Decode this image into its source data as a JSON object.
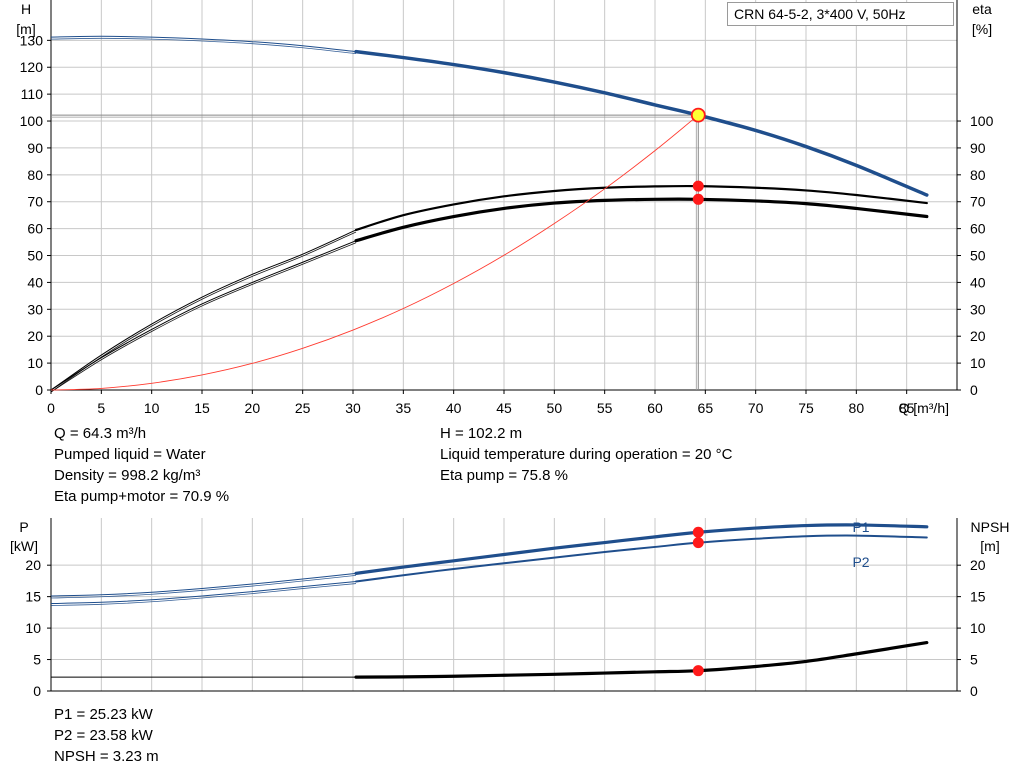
{
  "legend_title": "CRN 64-5-2, 3*400 V, 50Hz",
  "info": {
    "left": [
      "Q = 64.3 m³/h",
      "Pumped liquid = Water",
      "Density = 998.2 kg/m³",
      "Eta pump+motor = 70.9 %"
    ],
    "right": [
      "H = 102.2 m",
      "Liquid temperature during operation = 20 °C",
      "Eta pump = 75.8 %"
    ],
    "bottom": [
      "P1 = 25.23 kW",
      "P2 = 23.58 kW",
      "NPSH = 3.23 m"
    ]
  },
  "colors": {
    "head": "#1f4e8c",
    "eta": "#000000",
    "system": "#ff3b30",
    "power": "#1f4e8c",
    "npsh": "#000000",
    "grid": "#c8c8c8",
    "marker": "#ff1a1a",
    "duty_fill": "#ffff33"
  },
  "chart_data": [
    {
      "type": "line",
      "title": "",
      "xlabel": "Q [m³/h]",
      "ylabel_left": [
        "H",
        "[m]"
      ],
      "ylabel_right": [
        "eta",
        "[%]"
      ],
      "x_ticks": [
        0,
        5,
        10,
        15,
        20,
        25,
        30,
        35,
        40,
        45,
        50,
        55,
        60,
        65,
        70,
        75,
        80,
        85
      ],
      "xlim": [
        0,
        90
      ],
      "y_left_ticks": [
        0,
        10,
        20,
        30,
        40,
        50,
        60,
        70,
        80,
        90,
        100,
        110,
        120,
        130
      ],
      "y_right_ticks": [
        0,
        10,
        20,
        30,
        40,
        50,
        60,
        70,
        80,
        90,
        100
      ],
      "ylim": [
        0,
        145
      ],
      "grid": true,
      "series": [
        {
          "id": "head",
          "thin_to": 30.3,
          "x": [
            0,
            5,
            10,
            15,
            20,
            25,
            30.3,
            35,
            40,
            45,
            50,
            55,
            60,
            64.3,
            70,
            75,
            80,
            87
          ],
          "y": [
            131.2,
            131.5,
            131.2,
            130.5,
            129.5,
            128.0,
            125.8,
            123.6,
            121.0,
            118.0,
            114.5,
            110.5,
            106.0,
            102.2,
            96.5,
            90.5,
            83.5,
            72.5
          ]
        },
        {
          "id": "eta-pump",
          "thin_to": 30.3,
          "x": [
            0,
            5,
            10,
            15,
            20,
            25,
            30.3,
            35,
            40,
            45,
            50,
            55,
            60,
            64.3,
            70,
            75,
            80,
            87
          ],
          "y": [
            0,
            13,
            24.5,
            34.5,
            43,
            50.5,
            59.5,
            65,
            69,
            72,
            74,
            75.2,
            75.7,
            75.8,
            75.2,
            74.2,
            72.5,
            69.5
          ]
        },
        {
          "id": "eta-total",
          "thin_to": 30.3,
          "x": [
            0,
            5,
            10,
            15,
            20,
            25,
            30.3,
            35,
            40,
            45,
            50,
            55,
            60,
            64.3,
            70,
            75,
            80,
            87
          ],
          "y": [
            0,
            12,
            22.5,
            32,
            40,
            47.5,
            55.5,
            60.5,
            64.5,
            67.5,
            69.5,
            70.5,
            70.9,
            70.9,
            70.3,
            69.3,
            67.5,
            64.5
          ]
        },
        {
          "id": "system",
          "x": [
            0,
            5,
            10,
            15,
            20,
            25,
            30,
            35,
            40,
            45,
            50,
            55,
            60,
            64.3
          ],
          "y": [
            0,
            0.6,
            2.5,
            5.6,
            9.9,
            15.5,
            22.3,
            30.3,
            39.6,
            50.1,
            61.9,
            74.8,
            89.0,
            102.2
          ]
        }
      ],
      "duty_point": {
        "q": 64.3,
        "h": 102.2
      },
      "markers": [
        {
          "x": 64.3,
          "y": 75.8
        },
        {
          "x": 64.3,
          "y": 70.9
        }
      ]
    },
    {
      "type": "line",
      "title": "",
      "ylabel_left": [
        "P",
        "[kW]"
      ],
      "ylabel_right": [
        "NPSH",
        "[m]"
      ],
      "xlim": [
        0,
        90
      ],
      "y_left_ticks": [
        0,
        5,
        10,
        15,
        20
      ],
      "y_right_ticks": [
        0,
        5,
        10,
        15,
        20
      ],
      "ylim": [
        0,
        27.5
      ],
      "grid": true,
      "series": [
        {
          "id": "p1",
          "name": "P1",
          "thin_to": 30.3,
          "x": [
            0,
            5,
            10,
            15,
            20,
            25,
            30.3,
            35,
            40,
            45,
            50,
            55,
            60,
            64.3,
            70,
            75,
            80,
            87
          ],
          "y": [
            15.1,
            15.3,
            15.7,
            16.3,
            17.0,
            17.8,
            18.7,
            19.7,
            20.7,
            21.7,
            22.7,
            23.6,
            24.5,
            25.23,
            25.9,
            26.3,
            26.4,
            26.1
          ]
        },
        {
          "id": "p2",
          "name": "P2",
          "thin_to": 30.3,
          "x": [
            0,
            5,
            10,
            15,
            20,
            25,
            30.3,
            35,
            40,
            45,
            50,
            55,
            60,
            64.3,
            70,
            75,
            80,
            87
          ],
          "y": [
            13.9,
            14.1,
            14.5,
            15.1,
            15.8,
            16.6,
            17.4,
            18.4,
            19.4,
            20.3,
            21.2,
            22.1,
            22.9,
            23.58,
            24.2,
            24.6,
            24.7,
            24.4
          ]
        },
        {
          "id": "npsh",
          "thin_to": 30.3,
          "x": [
            0,
            30.3,
            35,
            40,
            45,
            50,
            55,
            60,
            64.3,
            70,
            75,
            80,
            87
          ],
          "y": [
            2.2,
            2.2,
            2.25,
            2.35,
            2.5,
            2.65,
            2.85,
            3.05,
            3.23,
            3.9,
            4.7,
            5.9,
            7.7
          ]
        }
      ],
      "markers": [
        {
          "x": 64.3,
          "y": 25.23
        },
        {
          "x": 64.3,
          "y": 23.58
        },
        {
          "x": 64.3,
          "y": 3.23
        }
      ]
    }
  ]
}
